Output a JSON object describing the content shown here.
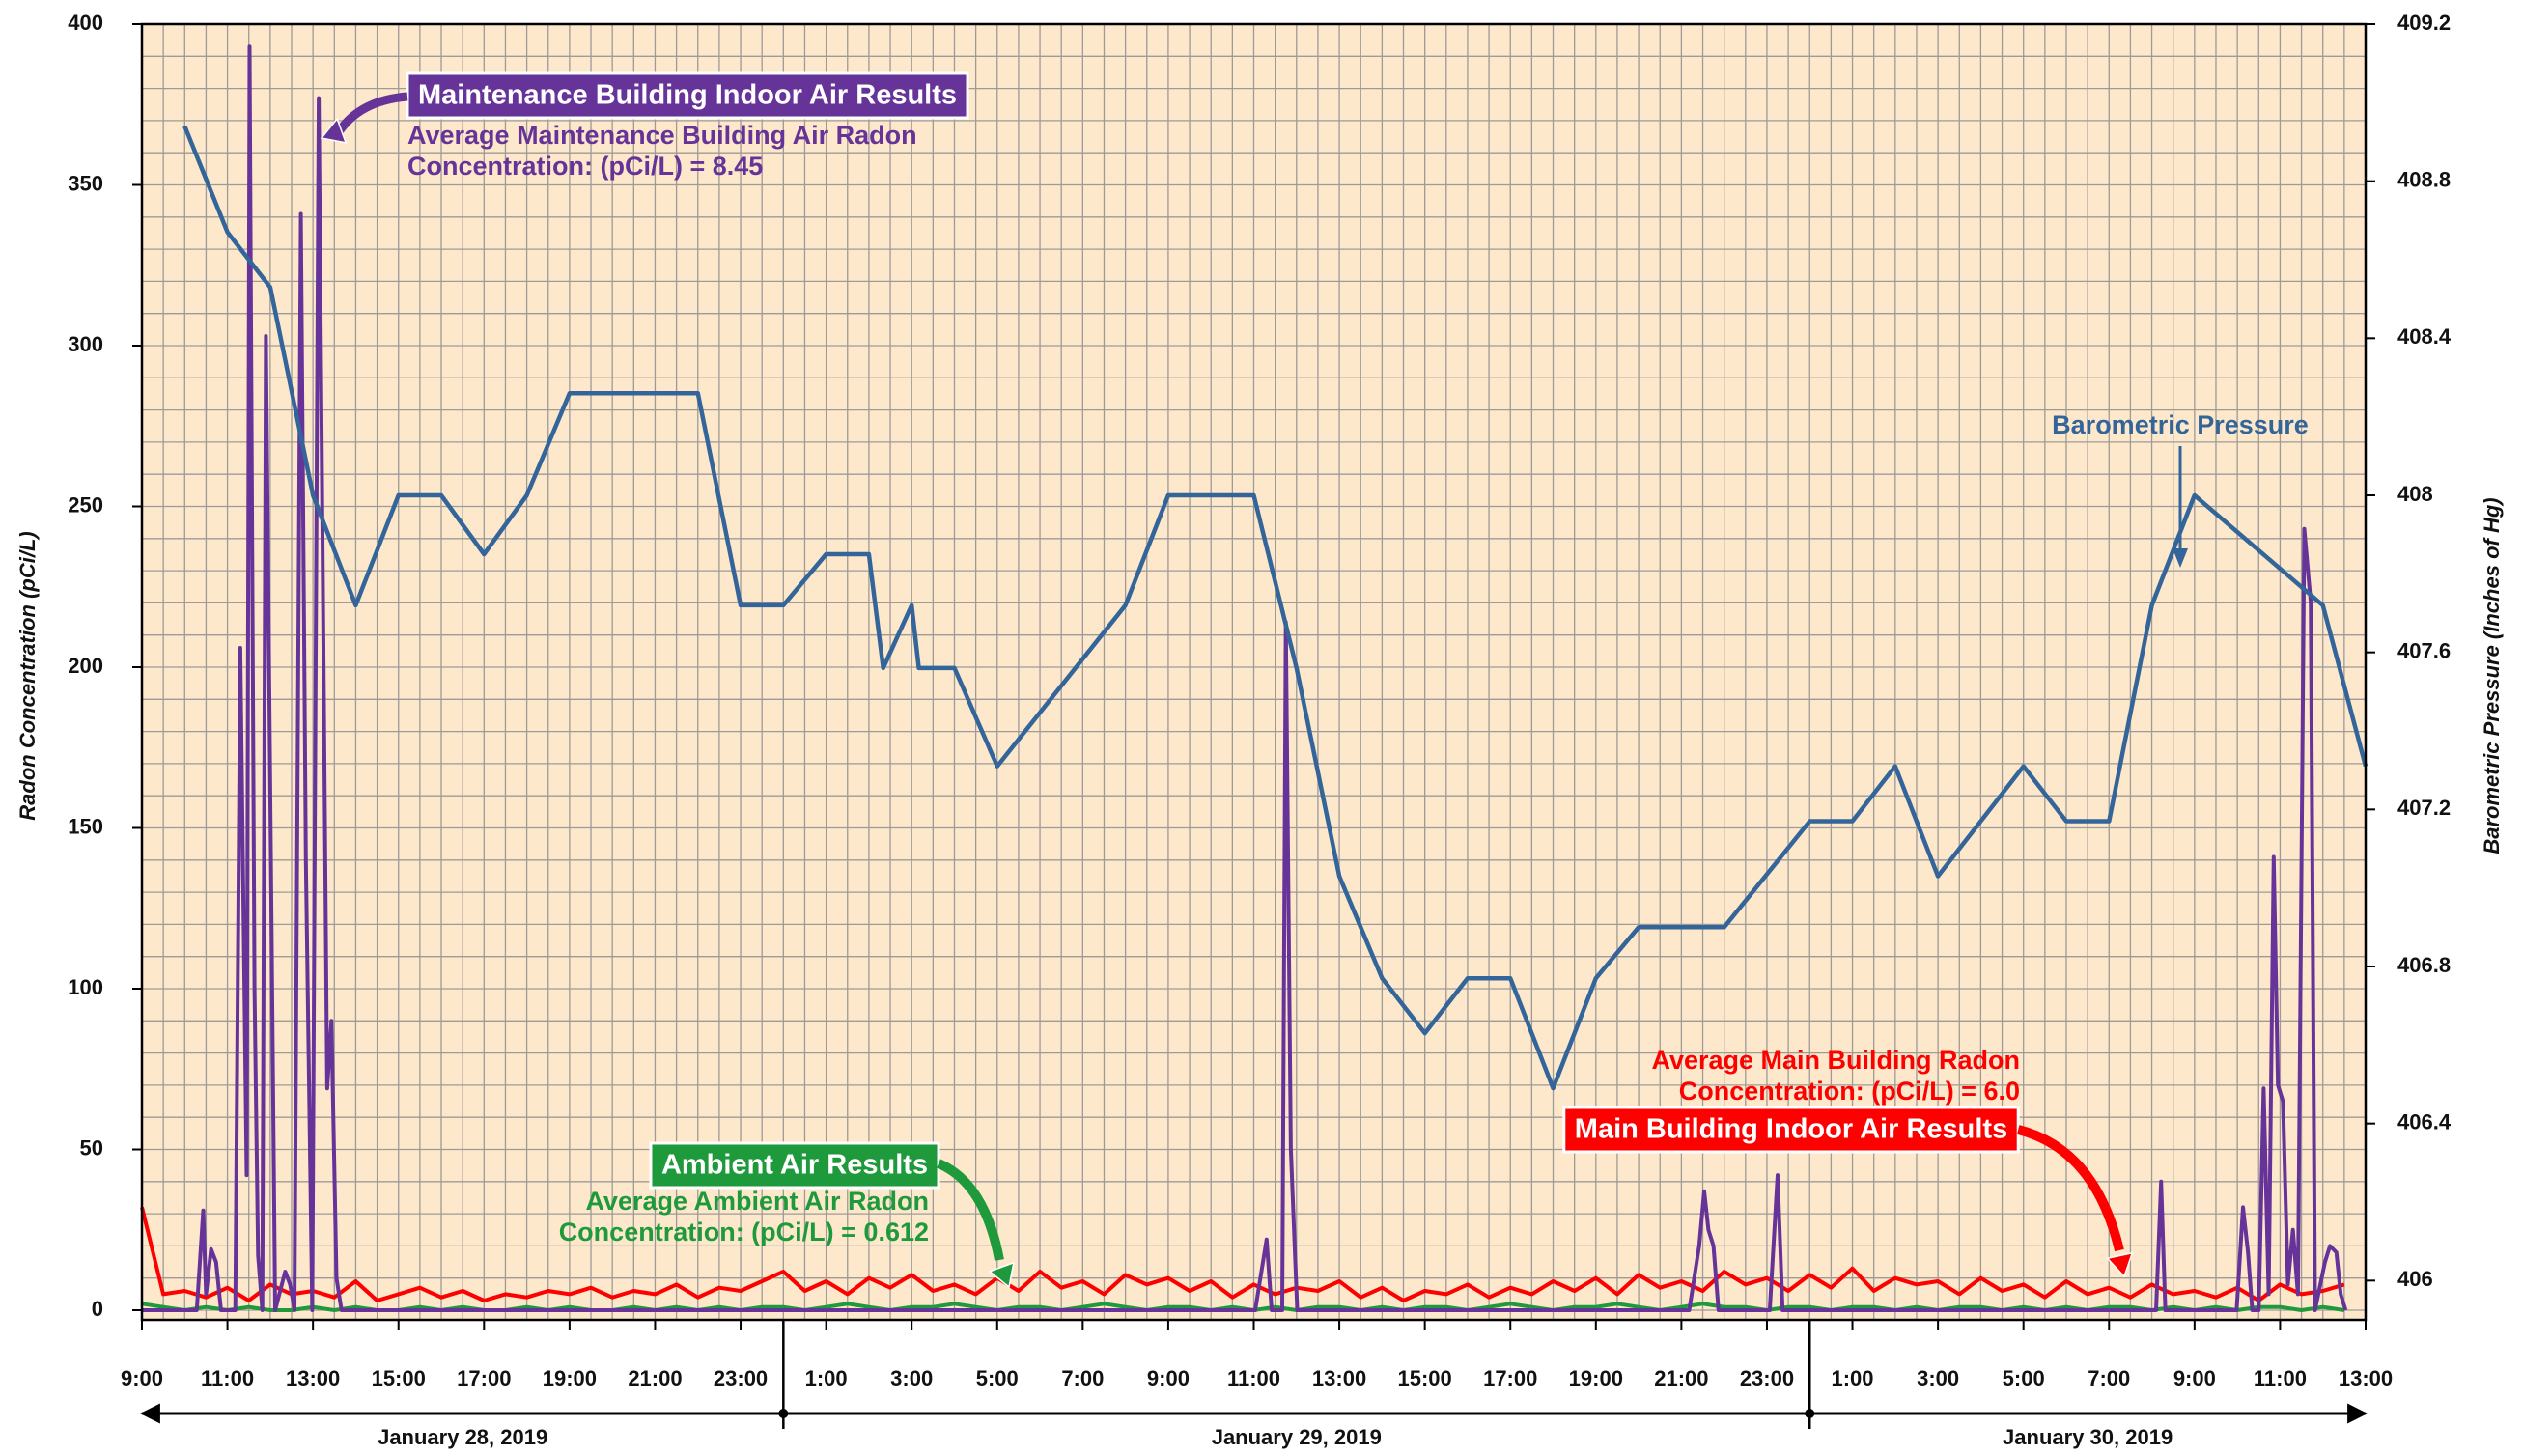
{
  "chart_data": {
    "type": "line",
    "ylabel": "Radon Concentration (pCi/L)",
    "y2label": "Barometric Pressure (Inches of Hg)",
    "xlim": [
      "2019-01-28T09:00",
      "2019-01-30T13:00"
    ],
    "xticks": [
      {
        "value": "2019-01-28T09:00",
        "label": "9:00"
      },
      {
        "value": "2019-01-28T11:00",
        "label": "11:00"
      },
      {
        "value": "2019-01-28T13:00",
        "label": "13:00"
      },
      {
        "value": "2019-01-28T15:00",
        "label": "15:00"
      },
      {
        "value": "2019-01-28T17:00",
        "label": "17:00"
      },
      {
        "value": "2019-01-28T19:00",
        "label": "19:00"
      },
      {
        "value": "2019-01-28T21:00",
        "label": "21:00"
      },
      {
        "value": "2019-01-28T23:00",
        "label": "23:00"
      },
      {
        "value": "2019-01-29T01:00",
        "label": "1:00"
      },
      {
        "value": "2019-01-29T03:00",
        "label": "3:00"
      },
      {
        "value": "2019-01-29T05:00",
        "label": "5:00"
      },
      {
        "value": "2019-01-29T07:00",
        "label": "7:00"
      },
      {
        "value": "2019-01-29T09:00",
        "label": "9:00"
      },
      {
        "value": "2019-01-29T11:00",
        "label": "11:00"
      },
      {
        "value": "2019-01-29T13:00",
        "label": "13:00"
      },
      {
        "value": "2019-01-29T15:00",
        "label": "15:00"
      },
      {
        "value": "2019-01-29T17:00",
        "label": "17:00"
      },
      {
        "value": "2019-01-29T19:00",
        "label": "19:00"
      },
      {
        "value": "2019-01-29T21:00",
        "label": "21:00"
      },
      {
        "value": "2019-01-29T23:00",
        "label": "23:00"
      },
      {
        "value": "2019-01-30T01:00",
        "label": "1:00"
      },
      {
        "value": "2019-01-30T03:00",
        "label": "3:00"
      },
      {
        "value": "2019-01-30T05:00",
        "label": "5:00"
      },
      {
        "value": "2019-01-30T07:00",
        "label": "7:00"
      },
      {
        "value": "2019-01-30T09:00",
        "label": "9:00"
      },
      {
        "value": "2019-01-30T11:00",
        "label": "11:00"
      },
      {
        "value": "2019-01-30T13:00",
        "label": "13:00"
      }
    ],
    "date_spans": [
      {
        "label": "January 28, 2019",
        "start": "2019-01-28T09:00",
        "end": "2019-01-29T00:00"
      },
      {
        "label": "January 29, 2019",
        "start": "2019-01-29T00:00",
        "end": "2019-01-30T00:00"
      },
      {
        "label": "January 30, 2019",
        "start": "2019-01-30T00:00",
        "end": "2019-01-30T13:00"
      }
    ],
    "ylim": [
      -3,
      400
    ],
    "yticks": [
      0,
      50,
      100,
      150,
      200,
      250,
      300,
      350,
      400
    ],
    "y2lim": [
      405.9,
      409.2
    ],
    "y2ticks": [
      406,
      406.4,
      406.8,
      407.2,
      407.6,
      408,
      408.4,
      408.8,
      409.2
    ],
    "grid": true,
    "background": "#fde8cb",
    "series": [
      {
        "name": "Maintenance Building Indoor Air Results",
        "color": "#663399",
        "note": [
          "Average Maintenance Building Air Radon",
          "Concentration: (pCi/L) = 8.45"
        ],
        "x": [
          "2019-01-28T09:00",
          "2019-01-28T10:17",
          "2019-01-28T10:26",
          "2019-01-28T10:30",
          "2019-01-28T10:37",
          "2019-01-28T10:44",
          "2019-01-28T10:51",
          "2019-01-28T11:11",
          "2019-01-28T11:18",
          "2019-01-28T11:27",
          "2019-01-28T11:31",
          "2019-01-28T11:38",
          "2019-01-28T11:43",
          "2019-01-28T11:49",
          "2019-01-28T11:54",
          "2019-01-28T12:01",
          "2019-01-28T12:07",
          "2019-01-28T12:21",
          "2019-01-28T12:28",
          "2019-01-28T12:34",
          "2019-01-28T12:43",
          "2019-01-28T12:50",
          "2019-01-28T12:59",
          "2019-01-28T13:08",
          "2019-01-28T13:20",
          "2019-01-28T13:26",
          "2019-01-28T13:33",
          "2019-01-28T13:40",
          "2019-01-29T11:02",
          "2019-01-29T11:18",
          "2019-01-29T11:25",
          "2019-01-29T11:40",
          "2019-01-29T11:45",
          "2019-01-29T11:52",
          "2019-01-29T12:01",
          "2019-01-29T21:11",
          "2019-01-29T21:25",
          "2019-01-29T21:32",
          "2019-01-29T21:38",
          "2019-01-29T21:45",
          "2019-01-29T21:52",
          "2019-01-29T23:04",
          "2019-01-29T23:15",
          "2019-01-29T23:22",
          "2019-01-30T08:06",
          "2019-01-30T08:13",
          "2019-01-30T08:19",
          "2019-01-30T09:59",
          "2019-01-30T10:08",
          "2019-01-30T10:15",
          "2019-01-30T10:21",
          "2019-01-30T10:30",
          "2019-01-30T10:37",
          "2019-01-30T10:44",
          "2019-01-30T10:51",
          "2019-01-30T10:57",
          "2019-01-30T11:04",
          "2019-01-30T11:11",
          "2019-01-30T11:18",
          "2019-01-30T11:25",
          "2019-01-30T11:34",
          "2019-01-30T11:43",
          "2019-01-30T11:49",
          "2019-01-30T12:03",
          "2019-01-30T12:10",
          "2019-01-30T12:19",
          "2019-01-30T12:25",
          "2019-01-30T12:32"
        ],
        "values": [
          0,
          0,
          31,
          5,
          19,
          15,
          0,
          0,
          206,
          42,
          393,
          100,
          17,
          0,
          303,
          140,
          0,
          12,
          8,
          0,
          341,
          140,
          0,
          377,
          69,
          90,
          10,
          0,
          0,
          22,
          0,
          0,
          214,
          50,
          0,
          0,
          20,
          37,
          25,
          20,
          0,
          0,
          42,
          0,
          0,
          40,
          0,
          0,
          32,
          18,
          0,
          0,
          69,
          5,
          141,
          70,
          65,
          8,
          25,
          5,
          243,
          220,
          0,
          15,
          20,
          18,
          5,
          0
        ]
      },
      {
        "name": "Main Building Indoor Air Results",
        "color": "#ff0000",
        "note": [
          "Average Main Building Radon",
          "Concentration: (pCi/L) = 6.0"
        ],
        "x": [
          "2019-01-28T09:00",
          "2019-01-28T09:30",
          "2019-01-28T10:00",
          "2019-01-28T10:30",
          "2019-01-28T11:00",
          "2019-01-28T11:30",
          "2019-01-28T12:00",
          "2019-01-28T12:30",
          "2019-01-28T13:00",
          "2019-01-28T13:30",
          "2019-01-28T14:00",
          "2019-01-28T14:30",
          "2019-01-28T15:00",
          "2019-01-28T15:30",
          "2019-01-28T16:00",
          "2019-01-28T16:30",
          "2019-01-28T17:00",
          "2019-01-28T17:30",
          "2019-01-28T18:00",
          "2019-01-28T18:30",
          "2019-01-28T19:00",
          "2019-01-28T19:30",
          "2019-01-28T20:00",
          "2019-01-28T20:30",
          "2019-01-28T21:00",
          "2019-01-28T21:30",
          "2019-01-28T22:00",
          "2019-01-28T22:30",
          "2019-01-28T23:00",
          "2019-01-28T23:30",
          "2019-01-29T00:00",
          "2019-01-29T00:30",
          "2019-01-29T01:00",
          "2019-01-29T01:30",
          "2019-01-29T02:00",
          "2019-01-29T02:30",
          "2019-01-29T03:00",
          "2019-01-29T03:30",
          "2019-01-29T04:00",
          "2019-01-29T04:30",
          "2019-01-29T05:00",
          "2019-01-29T05:30",
          "2019-01-29T06:00",
          "2019-01-29T06:30",
          "2019-01-29T07:00",
          "2019-01-29T07:30",
          "2019-01-29T08:00",
          "2019-01-29T08:30",
          "2019-01-29T09:00",
          "2019-01-29T09:30",
          "2019-01-29T10:00",
          "2019-01-29T10:30",
          "2019-01-29T11:00",
          "2019-01-29T11:30",
          "2019-01-29T12:00",
          "2019-01-29T12:30",
          "2019-01-29T13:00",
          "2019-01-29T13:30",
          "2019-01-29T14:00",
          "2019-01-29T14:30",
          "2019-01-29T15:00",
          "2019-01-29T15:30",
          "2019-01-29T16:00",
          "2019-01-29T16:30",
          "2019-01-29T17:00",
          "2019-01-29T17:30",
          "2019-01-29T18:00",
          "2019-01-29T18:30",
          "2019-01-29T19:00",
          "2019-01-29T19:30",
          "2019-01-29T20:00",
          "2019-01-29T20:30",
          "2019-01-29T21:00",
          "2019-01-29T21:30",
          "2019-01-29T22:00",
          "2019-01-29T22:30",
          "2019-01-29T23:00",
          "2019-01-29T23:30",
          "2019-01-30T00:00",
          "2019-01-30T00:30",
          "2019-01-30T01:00",
          "2019-01-30T01:30",
          "2019-01-30T02:00",
          "2019-01-30T02:30",
          "2019-01-30T03:00",
          "2019-01-30T03:30",
          "2019-01-30T04:00",
          "2019-01-30T04:30",
          "2019-01-30T05:00",
          "2019-01-30T05:30",
          "2019-01-30T06:00",
          "2019-01-30T06:30",
          "2019-01-30T07:00",
          "2019-01-30T07:30",
          "2019-01-30T08:00",
          "2019-01-30T08:30",
          "2019-01-30T09:00",
          "2019-01-30T09:30",
          "2019-01-30T10:00",
          "2019-01-30T10:30",
          "2019-01-30T11:00",
          "2019-01-30T11:30",
          "2019-01-30T12:00",
          "2019-01-30T12:30"
        ],
        "values": [
          32,
          5,
          6,
          4,
          7,
          3,
          8,
          5,
          6,
          4,
          9,
          3,
          5,
          7,
          4,
          6,
          3,
          5,
          4,
          6,
          5,
          7,
          4,
          6,
          5,
          8,
          4,
          7,
          6,
          9,
          12,
          6,
          9,
          5,
          10,
          7,
          11,
          6,
          8,
          5,
          10,
          6,
          12,
          7,
          9,
          5,
          11,
          8,
          10,
          6,
          9,
          4,
          8,
          5,
          7,
          6,
          9,
          4,
          7,
          3,
          6,
          5,
          8,
          4,
          7,
          5,
          9,
          6,
          10,
          5,
          11,
          7,
          9,
          6,
          12,
          8,
          10,
          6,
          11,
          7,
          13,
          6,
          10,
          8,
          9,
          5,
          10,
          6,
          8,
          4,
          9,
          5,
          7,
          4,
          8,
          5,
          6,
          4,
          7,
          3,
          8,
          5,
          6,
          8
        ]
      },
      {
        "name": "Ambient Air Results",
        "color": "#1e9a3c",
        "note": [
          "Average Ambient Air Radon",
          "Concentration: (pCi/L) = 0.612"
        ],
        "x": [
          "2019-01-28T09:00",
          "2019-01-28T09:30",
          "2019-01-28T10:00",
          "2019-01-28T10:30",
          "2019-01-28T11:00",
          "2019-01-28T11:30",
          "2019-01-28T12:00",
          "2019-01-28T12:30",
          "2019-01-28T13:00",
          "2019-01-28T13:30",
          "2019-01-28T14:00",
          "2019-01-28T14:30",
          "2019-01-28T15:00",
          "2019-01-28T15:30",
          "2019-01-28T16:00",
          "2019-01-28T16:30",
          "2019-01-28T17:00",
          "2019-01-28T17:30",
          "2019-01-28T18:00",
          "2019-01-28T18:30",
          "2019-01-28T19:00",
          "2019-01-28T19:30",
          "2019-01-28T20:00",
          "2019-01-28T20:30",
          "2019-01-28T21:00",
          "2019-01-28T21:30",
          "2019-01-28T22:00",
          "2019-01-28T22:30",
          "2019-01-28T23:00",
          "2019-01-28T23:30",
          "2019-01-29T00:00",
          "2019-01-29T00:30",
          "2019-01-29T01:00",
          "2019-01-29T01:30",
          "2019-01-29T02:00",
          "2019-01-29T02:30",
          "2019-01-29T03:00",
          "2019-01-29T03:30",
          "2019-01-29T04:00",
          "2019-01-29T04:30",
          "2019-01-29T05:00",
          "2019-01-29T05:30",
          "2019-01-29T06:00",
          "2019-01-29T06:30",
          "2019-01-29T07:00",
          "2019-01-29T07:30",
          "2019-01-29T08:00",
          "2019-01-29T08:30",
          "2019-01-29T09:00",
          "2019-01-29T09:30",
          "2019-01-29T10:00",
          "2019-01-29T10:30",
          "2019-01-29T11:00",
          "2019-01-29T11:30",
          "2019-01-29T12:00",
          "2019-01-29T12:30",
          "2019-01-29T13:00",
          "2019-01-29T13:30",
          "2019-01-29T14:00",
          "2019-01-29T14:30",
          "2019-01-29T15:00",
          "2019-01-29T15:30",
          "2019-01-29T16:00",
          "2019-01-29T16:30",
          "2019-01-29T17:00",
          "2019-01-29T17:30",
          "2019-01-29T18:00",
          "2019-01-29T18:30",
          "2019-01-29T19:00",
          "2019-01-29T19:30",
          "2019-01-29T20:00",
          "2019-01-29T20:30",
          "2019-01-29T21:00",
          "2019-01-29T21:30",
          "2019-01-29T22:00",
          "2019-01-29T22:30",
          "2019-01-29T23:00",
          "2019-01-29T23:30",
          "2019-01-30T00:00",
          "2019-01-30T00:30",
          "2019-01-30T01:00",
          "2019-01-30T01:30",
          "2019-01-30T02:00",
          "2019-01-30T02:30",
          "2019-01-30T03:00",
          "2019-01-30T03:30",
          "2019-01-30T04:00",
          "2019-01-30T04:30",
          "2019-01-30T05:00",
          "2019-01-30T05:30",
          "2019-01-30T06:00",
          "2019-01-30T06:30",
          "2019-01-30T07:00",
          "2019-01-30T07:30",
          "2019-01-30T08:00",
          "2019-01-30T08:30",
          "2019-01-30T09:00",
          "2019-01-30T09:30",
          "2019-01-30T10:00",
          "2019-01-30T10:30",
          "2019-01-30T11:00",
          "2019-01-30T11:30",
          "2019-01-30T12:00",
          "2019-01-30T12:30"
        ],
        "values": [
          2,
          1,
          0,
          1,
          0,
          1,
          0,
          0,
          1,
          0,
          1,
          0,
          0,
          1,
          0,
          1,
          0,
          0,
          1,
          0,
          1,
          0,
          0,
          1,
          0,
          1,
          0,
          1,
          0,
          1,
          1,
          0,
          1,
          2,
          1,
          0,
          1,
          1,
          2,
          1,
          0,
          1,
          1,
          0,
          1,
          2,
          1,
          0,
          1,
          1,
          0,
          1,
          0,
          1,
          0,
          1,
          1,
          0,
          1,
          0,
          1,
          1,
          0,
          1,
          2,
          1,
          0,
          1,
          1,
          2,
          1,
          0,
          1,
          2,
          1,
          1,
          0,
          1,
          1,
          0,
          1,
          1,
          0,
          1,
          0,
          1,
          1,
          0,
          1,
          0,
          1,
          0,
          1,
          1,
          0,
          1,
          0,
          1,
          0,
          1,
          1,
          0,
          1,
          0
        ]
      },
      {
        "name": "Barometric Pressure",
        "color": "#34659a",
        "axis": "y2",
        "x": [
          "2019-01-28T10:00",
          "2019-01-28T11:00",
          "2019-01-28T12:00",
          "2019-01-28T13:00",
          "2019-01-28T14:00",
          "2019-01-28T15:00",
          "2019-01-28T16:00",
          "2019-01-28T17:00",
          "2019-01-28T18:00",
          "2019-01-28T19:00",
          "2019-01-28T22:00",
          "2019-01-28T23:00",
          "2019-01-29T00:00",
          "2019-01-29T01:00",
          "2019-01-29T02:00",
          "2019-01-29T02:20",
          "2019-01-29T03:00",
          "2019-01-29T03:10",
          "2019-01-29T04:00",
          "2019-01-29T05:00",
          "2019-01-29T08:00",
          "2019-01-29T09:00",
          "2019-01-29T11:00",
          "2019-01-29T12:00",
          "2019-01-29T13:00",
          "2019-01-29T14:00",
          "2019-01-29T15:00",
          "2019-01-29T16:00",
          "2019-01-29T17:00",
          "2019-01-29T18:00",
          "2019-01-29T19:00",
          "2019-01-29T20:00",
          "2019-01-29T22:00",
          "2019-01-30T00:00",
          "2019-01-30T01:00",
          "2019-01-30T02:00",
          "2019-01-30T03:00",
          "2019-01-30T05:00",
          "2019-01-30T06:00",
          "2019-01-30T07:00",
          "2019-01-30T08:00",
          "2019-01-30T09:00",
          "2019-01-30T12:00",
          "2019-01-30T13:00"
        ],
        "values": [
          408.94,
          408.67,
          408.53,
          408,
          407.72,
          408,
          408,
          407.85,
          408,
          408.26,
          408.26,
          407.72,
          407.72,
          407.85,
          407.85,
          407.56,
          407.72,
          407.56,
          407.56,
          407.31,
          407.72,
          408,
          408,
          407.56,
          407.03,
          406.77,
          406.63,
          406.77,
          406.77,
          406.49,
          406.77,
          406.9,
          406.9,
          407.17,
          407.17,
          407.31,
          407.03,
          407.31,
          407.17,
          407.17,
          407.72,
          408,
          407.72,
          407.31
        ]
      }
    ]
  }
}
